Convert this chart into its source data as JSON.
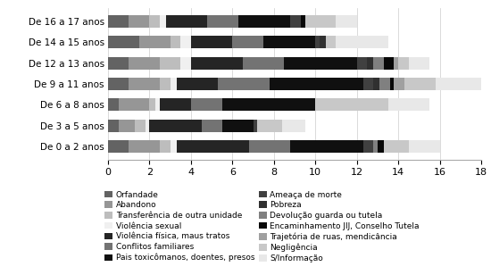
{
  "categories": [
    "De 0 a 2 anos",
    "De 3 a 5 anos",
    "De 6 a 8 anos",
    "De 9 a 11 anos",
    "De 12 a 13 anos",
    "De 14 a 15 anos",
    "De 16 a 17 anos"
  ],
  "legend_labels_col1": [
    "Orfandade",
    "Transferência de outra unidade",
    "Violência física, maus tratos",
    "Pais toxicômanos, doentes, presos",
    "Pobreza",
    "Encaminhamento JIJ, Conselho Tutela",
    "Negligência"
  ],
  "legend_labels_col2": [
    "Abandono",
    "Violência sexual",
    "Conflitos familiares",
    "Ameaça de morte",
    "Devolução guarda ou tutela",
    "Trajetória de ruas, mendicância",
    "S/Informação"
  ],
  "colors": [
    "#636363",
    "#969696",
    "#bdbdbd",
    "#f0f0f0",
    "#252525",
    "#737373",
    "#101010",
    "#404040",
    "#303030",
    "#808080",
    "#080808",
    "#a0a0a0",
    "#c8c8c8",
    "#e8e8e8"
  ],
  "bar_data": [
    [
      1.0,
      1.5,
      0.5,
      0.3,
      3.5,
      2.0,
      3.5,
      0.5,
      0.0,
      0.2,
      0.3,
      0.0,
      1.2,
      1.5
    ],
    [
      0.5,
      0.8,
      0.5,
      0.2,
      2.5,
      1.0,
      1.5,
      0.2,
      0.0,
      0.0,
      0.0,
      0.0,
      1.2,
      1.1
    ],
    [
      0.5,
      1.5,
      0.3,
      0.2,
      1.5,
      1.5,
      4.5,
      0.0,
      0.0,
      0.0,
      0.0,
      0.0,
      3.5,
      2.0
    ],
    [
      1.0,
      1.5,
      0.5,
      0.3,
      2.0,
      2.5,
      4.5,
      0.5,
      0.3,
      0.5,
      0.2,
      0.5,
      1.5,
      2.2
    ],
    [
      1.0,
      1.5,
      1.0,
      0.5,
      2.5,
      2.0,
      3.5,
      0.5,
      0.3,
      0.5,
      0.5,
      0.2,
      0.5,
      1.0
    ],
    [
      1.5,
      1.5,
      0.5,
      0.5,
      2.0,
      1.5,
      2.5,
      0.2,
      0.3,
      0.0,
      0.0,
      0.0,
      0.5,
      2.5
    ],
    [
      1.0,
      1.0,
      0.5,
      0.3,
      2.0,
      1.5,
      2.5,
      0.5,
      0.0,
      0.0,
      0.2,
      0.0,
      1.5,
      1.0
    ]
  ],
  "xlim": [
    0,
    18
  ],
  "xticks": [
    0,
    2,
    4,
    6,
    8,
    10,
    12,
    14,
    16,
    18
  ],
  "figsize": [
    5.5,
    3.08
  ],
  "dpi": 100,
  "background_color": "#ffffff"
}
